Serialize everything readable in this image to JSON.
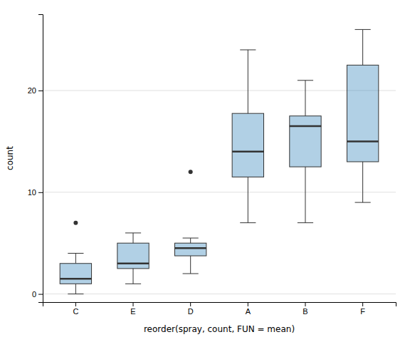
{
  "chart_data": {
    "type": "box",
    "xlabel": "reorder(spray, count, FUN = mean)",
    "ylabel": "count",
    "categories": [
      "C",
      "E",
      "D",
      "A",
      "B",
      "F"
    ],
    "q1": [
      1.0,
      2.5,
      3.75,
      11.5,
      12.5,
      13.0
    ],
    "median": [
      1.5,
      3.0,
      4.5,
      14.0,
      16.5,
      15.0
    ],
    "q3": [
      3.0,
      5.0,
      5.0,
      17.75,
      17.5,
      22.5
    ],
    "whislo": [
      0.0,
      1.0,
      2.0,
      7.0,
      7.0,
      9.0
    ],
    "whishi": [
      4.0,
      6.0,
      5.5,
      24.0,
      21.0,
      26.0
    ],
    "fliers": [
      [
        7.0
      ],
      [],
      [
        12.0
      ],
      [],
      [],
      []
    ],
    "ylim": [
      -0.8,
      27.5
    ],
    "yticks": [
      0,
      10,
      20
    ],
    "grid": true
  }
}
